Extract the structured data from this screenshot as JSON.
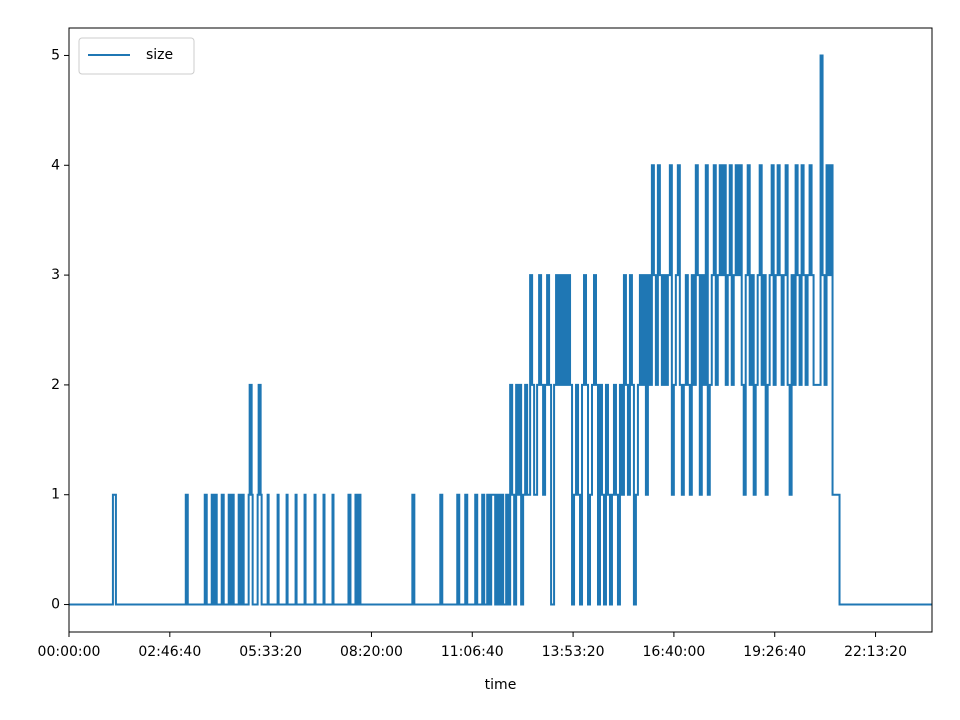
{
  "chart_data": {
    "type": "step",
    "xlabel": "time",
    "series": [
      {
        "name": "size",
        "color": "#1f77b4",
        "x": [
          0,
          4356,
          4653,
          11583,
          11781,
          13464,
          13662,
          14157,
          14355,
          14454,
          14652,
          15147,
          15345,
          15840,
          16038,
          16137,
          16335,
          16830,
          17028,
          17127,
          17325,
          17820,
          17919,
          18117,
          18216,
          18711,
          18810,
          19008,
          19107,
          19701,
          19800,
          20691,
          20790,
          21582,
          21681,
          22473,
          22572,
          23364,
          23463,
          24354,
          24453,
          25245,
          25344,
          26136,
          26235,
          27720,
          27918,
          28413,
          28611,
          28710,
          28908,
          34056,
          34254,
          36828,
          37026,
          38511,
          38709,
          39303,
          39501,
          40293,
          40491,
          40986,
          41184,
          41481,
          41679,
          41877,
          42273,
          42471,
          42669,
          42867,
          43065,
          43362,
          43560,
          43758,
          43956,
          44154,
          44352,
          44550,
          44649,
          44847,
          45045,
          45243,
          45441,
          45738,
          45936,
          46134,
          46431,
          46629,
          46827,
          47025,
          47223,
          47421,
          47619,
          47817,
          48114,
          48312,
          48510,
          48708,
          48906,
          49104,
          49302,
          49500,
          49698,
          49896,
          50094,
          50292,
          50490,
          50688,
          50886,
          51084,
          51282,
          51480,
          51678,
          51876,
          52074,
          52272,
          52470,
          52668,
          52866,
          53064,
          53262,
          53460,
          53658,
          53856,
          54054,
          54252,
          54450,
          54648,
          54846,
          55044,
          55242,
          55440,
          55638,
          55836,
          56034,
          56232,
          56430,
          56628,
          56826,
          57024,
          57222,
          57420,
          57618,
          57816,
          58014,
          58212,
          58410,
          58608,
          58806,
          59004,
          59202,
          59400,
          59598,
          59796,
          59994,
          60192,
          60390,
          60588,
          60786,
          60984,
          61182,
          61380,
          61578,
          61776,
          61974,
          62172,
          62370,
          62568,
          62766,
          62964,
          63162,
          63360,
          63558,
          63756,
          63954,
          64152,
          64350,
          64548,
          64746,
          64944,
          65142,
          65340,
          65538,
          65736,
          65934,
          66132,
          66330,
          66528,
          66726,
          66924,
          67122,
          67320,
          67518,
          67716,
          67914,
          68112,
          68310,
          68508,
          68706,
          68904,
          69102,
          69300,
          69498,
          69696,
          69894,
          70092,
          70290,
          70488,
          70686,
          70884,
          71082,
          71280,
          71478,
          71676,
          71874,
          72072,
          72270,
          72468,
          72666,
          72864,
          73062,
          73260,
          73458,
          73656,
          73854,
          74547,
          74745,
          74943,
          75141,
          75339,
          75537,
          75735,
          76428,
          85600
        ],
        "values": [
          0,
          1,
          0,
          1,
          0,
          1,
          0,
          1,
          0,
          1,
          0,
          1,
          0,
          1,
          0,
          1,
          0,
          1,
          0,
          1,
          0,
          1,
          2,
          1,
          0,
          1,
          2,
          1,
          0,
          1,
          0,
          1,
          0,
          1,
          0,
          1,
          0,
          1,
          0,
          1,
          0,
          1,
          0,
          1,
          0,
          1,
          0,
          1,
          0,
          1,
          0,
          1,
          0,
          1,
          0,
          1,
          0,
          1,
          0,
          1,
          0,
          1,
          0,
          1,
          0,
          1,
          0,
          1,
          0,
          1,
          0,
          1,
          0,
          2,
          1,
          0,
          2,
          1,
          2,
          0,
          1,
          2,
          1,
          3,
          2,
          1,
          2,
          3,
          2,
          1,
          2,
          3,
          2,
          0,
          2,
          3,
          2,
          3,
          2,
          3,
          2,
          3,
          2,
          0,
          1,
          2,
          1,
          0,
          2,
          3,
          2,
          0,
          1,
          2,
          3,
          2,
          0,
          2,
          1,
          0,
          2,
          1,
          0,
          1,
          2,
          1,
          0,
          2,
          1,
          3,
          2,
          1,
          3,
          2,
          0,
          1,
          2,
          3,
          2,
          3,
          1,
          3,
          2,
          4,
          3,
          2,
          4,
          3,
          2,
          3,
          2,
          3,
          4,
          1,
          2,
          3,
          4,
          2,
          1,
          2,
          3,
          2,
          1,
          3,
          2,
          4,
          3,
          1,
          3,
          2,
          4,
          1,
          2,
          3,
          4,
          2,
          3,
          4,
          3,
          4,
          2,
          3,
          4,
          2,
          3,
          4,
          3,
          4,
          2,
          1,
          3,
          4,
          2,
          3,
          1,
          2,
          3,
          4,
          2,
          3,
          1,
          2,
          3,
          4,
          2,
          3,
          4,
          3,
          2,
          3,
          4,
          2,
          1,
          3,
          2,
          4,
          3,
          2,
          4,
          3,
          2,
          3,
          4,
          3,
          2,
          5,
          3,
          2,
          4,
          3,
          4,
          1,
          0,
          0
        ]
      }
    ],
    "xlim": [
      0,
      85600
    ],
    "ylim": [
      -0.25,
      5.25
    ],
    "xticks": [
      {
        "value": 0,
        "label": "00:00:00"
      },
      {
        "value": 10000,
        "label": "02:46:40"
      },
      {
        "value": 20000,
        "label": "05:33:20"
      },
      {
        "value": 30000,
        "label": "08:20:00"
      },
      {
        "value": 40000,
        "label": "11:06:40"
      },
      {
        "value": 50000,
        "label": "13:53:20"
      },
      {
        "value": 60000,
        "label": "16:40:00"
      },
      {
        "value": 70000,
        "label": "19:26:40"
      },
      {
        "value": 80000,
        "label": "22:13:20"
      }
    ],
    "yticks": [
      0,
      1,
      2,
      3,
      4,
      5
    ],
    "legend": "upper left"
  }
}
